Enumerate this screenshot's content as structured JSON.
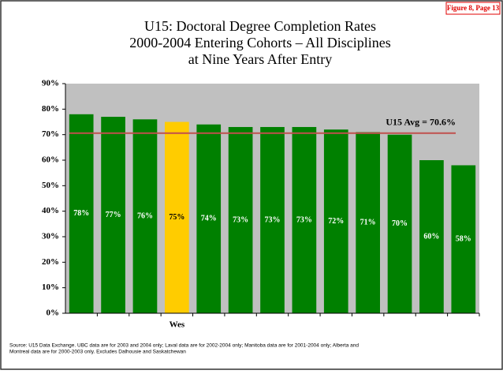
{
  "figure_tag": "Figure 8, Page 13",
  "chart_data": {
    "type": "bar",
    "title": [
      "U15: Doctoral Degree Completion Rates",
      "2000-2004 Entering Cohorts – All Disciplines",
      "at Nine Years After Entry"
    ],
    "categories": [
      null,
      null,
      null,
      "Wes",
      null,
      null,
      null,
      null,
      null,
      null,
      null,
      null,
      null
    ],
    "values": [
      78,
      77,
      76,
      75,
      74,
      73,
      73,
      73,
      72,
      71,
      70,
      60,
      58
    ],
    "value_labels": [
      "78%",
      "77%",
      "76%",
      "75%",
      "74%",
      "73%",
      "73%",
      "73%",
      "72%",
      "71%",
      "70%",
      "60%",
      "58%"
    ],
    "colors": [
      "#008000",
      "#008000",
      "#008000",
      "#ffcc00",
      "#008000",
      "#008000",
      "#008000",
      "#008000",
      "#008000",
      "#008000",
      "#008000",
      "#008000",
      "#008000"
    ],
    "ylim": [
      0,
      90
    ],
    "yticks": [
      {
        "value": 0,
        "label": "0%"
      },
      {
        "value": 10,
        "label": "10%"
      },
      {
        "value": 20,
        "label": "20%"
      },
      {
        "value": 30,
        "label": "30%"
      },
      {
        "value": 40,
        "label": "40%"
      },
      {
        "value": 50,
        "label": "50%"
      },
      {
        "value": 60,
        "label": "60%"
      },
      {
        "value": 70,
        "label": "70%"
      },
      {
        "value": 80,
        "label": "80%"
      },
      {
        "value": 90,
        "label": "90%"
      }
    ],
    "grid": false,
    "plot_background": "#c0c0c0",
    "reference_line": {
      "value": 70.6,
      "label": "U15 Avg = 70.6%",
      "color": "#c0504d"
    },
    "source": [
      "Source:  U15 Data Exchange.  UBC data are for 2003 and 2004 only; Laval data are for 2002-2004 only; Manitoba data are for 2001-2004 only; Alberta and",
      "Montreal data are for 2000-2003 only.  Excludes Dalhousie and Saskatchewan"
    ]
  }
}
